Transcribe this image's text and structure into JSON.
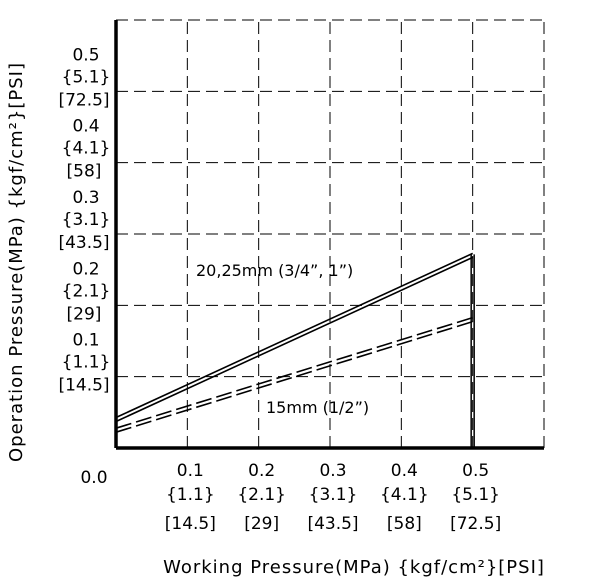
{
  "chart_data": {
    "type": "line",
    "title": "",
    "xlabel": "Working Pressure(MPa) {kgf/cm²}[PSI]",
    "ylabel": "Operation Pressure(MPa) {kgf/cm²}[PSI]",
    "xlim": [
      0,
      0.6
    ],
    "ylim": [
      0,
      0.6
    ],
    "grid": true,
    "x_ticks": [
      {
        "mpa": "0.1",
        "kgf": "{1.1}",
        "psi": "[14.5]"
      },
      {
        "mpa": "0.2",
        "kgf": "{2.1}",
        "psi": "[29]"
      },
      {
        "mpa": "0.3",
        "kgf": "{3.1}",
        "psi": "[43.5]"
      },
      {
        "mpa": "0.4",
        "kgf": "{4.1}",
        "psi": "[58]"
      },
      {
        "mpa": "0.5",
        "kgf": "{5.1}",
        "psi": "[72.5]"
      }
    ],
    "y_ticks": [
      {
        "mpa": "0.1",
        "kgf": "{1.1}",
        "psi": "[14.5]"
      },
      {
        "mpa": "0.2",
        "kgf": "{2.1}",
        "psi": "[29]"
      },
      {
        "mpa": "0.3",
        "kgf": "{3.1}",
        "psi": "[43.5]"
      },
      {
        "mpa": "0.4",
        "kgf": "{4.1}",
        "psi": "[58]"
      },
      {
        "mpa": "0.5",
        "kgf": "{5.1}",
        "psi": "[72.5]"
      }
    ],
    "origin_label": "0.0",
    "series": [
      {
        "name": "20,25mm (3/4”, 1”)",
        "style": "solid",
        "x": [
          0,
          0.5
        ],
        "y": [
          0.04,
          0.27
        ]
      },
      {
        "name": "15mm (1/2”)",
        "style": "dashed",
        "x": [
          0,
          0.5
        ],
        "y": [
          0.025,
          0.18
        ]
      }
    ],
    "colors": {
      "line": "#000000",
      "grid": "#000000",
      "background": "#ffffff"
    }
  }
}
